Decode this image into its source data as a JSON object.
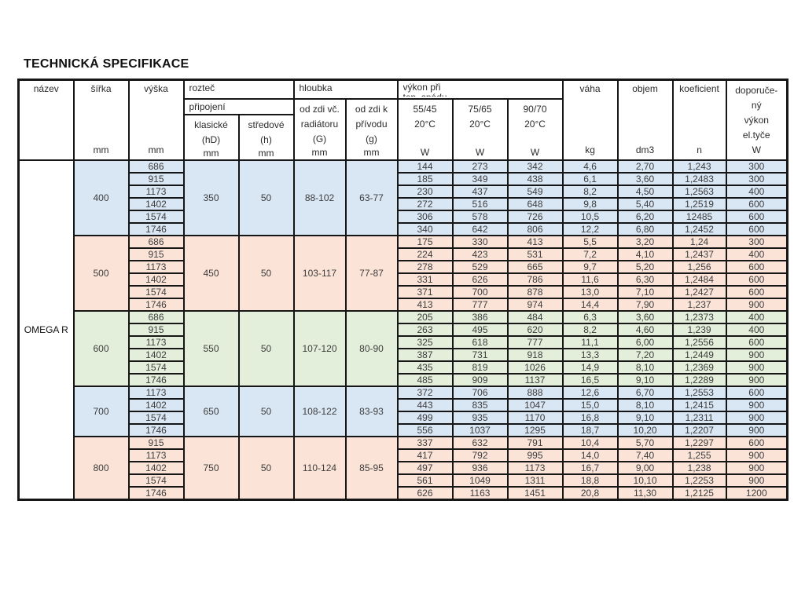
{
  "title": "TECHNICKÁ SPECIFIKACE",
  "colors": {
    "blue": "#d9e6f4",
    "peach": "#fbe4d7",
    "green": "#e3efdb"
  },
  "table": {
    "product": "OMEGA R",
    "headers": {
      "nazev": "název",
      "sirka": "šířka",
      "vyska": "výška",
      "roztec": "rozteč",
      "pripojeni": "připojení",
      "klasicke_l1": "klasické",
      "klasicke_l2": "(hD)",
      "stredove_l1": "středové",
      "stredove_l2": "(h)",
      "hloubka": "hloubka",
      "od_zdi_vc_l1": "od zdi  vč.",
      "od_zdi_vc_l2": "radiátoru",
      "od_zdi_vc_l3": "(G)",
      "od_zdi_k_l1": "od zdi  k",
      "od_zdi_k_l2": "přívodu",
      "od_zdi_k_l3": "(g)",
      "vykon_l1": "výkon při",
      "vykon_l2": "tep. spádu",
      "p55_l1": "55/45",
      "p55_l2": "20°C",
      "p75_l1": "75/65",
      "p75_l2": "20°C",
      "p90_l1": "90/70",
      "p90_l2": "20°C",
      "vaha": "váha",
      "objem": "objem",
      "koeficient": "koeficient",
      "dop_l1": "doporuče-",
      "dop_l2": "ný",
      "dop_l3": "výkon",
      "dop_l4": "el.tyče",
      "unit_mm": "mm",
      "unit_w": "W",
      "unit_kg": "kg",
      "unit_dm3": "dm3",
      "unit_n": "n"
    },
    "groups": [
      {
        "sirka": "400",
        "klasicke": "350",
        "stredove": "50",
        "hl_g": "88-102",
        "hl_g2": "63-77",
        "color": "blue",
        "rows": [
          {
            "vyska": "686",
            "w55": "144",
            "w75": "273",
            "w90": "342",
            "vaha": "4,6",
            "objem": "2,70",
            "koef": "1,243",
            "dop": "300"
          },
          {
            "vyska": "915",
            "w55": "185",
            "w75": "349",
            "w90": "438",
            "vaha": "6,1",
            "objem": "3,60",
            "koef": "1,2483",
            "dop": "300"
          },
          {
            "vyska": "1173",
            "w55": "230",
            "w75": "437",
            "w90": "549",
            "vaha": "8,2",
            "objem": "4,50",
            "koef": "1,2563",
            "dop": "400"
          },
          {
            "vyska": "1402",
            "w55": "272",
            "w75": "516",
            "w90": "648",
            "vaha": "9,8",
            "objem": "5,40",
            "koef": "1,2519",
            "dop": "600"
          },
          {
            "vyska": "1574",
            "w55": "306",
            "w75": "578",
            "w90": "726",
            "vaha": "10,5",
            "objem": "6,20",
            "koef": "12485",
            "dop": "600"
          },
          {
            "vyska": "1746",
            "w55": "340",
            "w75": "642",
            "w90": "806",
            "vaha": "12,2",
            "objem": "6,80",
            "koef": "1,2452",
            "dop": "600"
          }
        ]
      },
      {
        "sirka": "500",
        "klasicke": "450",
        "stredove": "50",
        "hl_g": "103-117",
        "hl_g2": "77-87",
        "color": "peach",
        "rows": [
          {
            "vyska": "686",
            "w55": "175",
            "w75": "330",
            "w90": "413",
            "vaha": "5,5",
            "objem": "3,20",
            "koef": "1,24",
            "dop": "300"
          },
          {
            "vyska": "915",
            "w55": "224",
            "w75": "423",
            "w90": "531",
            "vaha": "7,2",
            "objem": "4,10",
            "koef": "1,2437",
            "dop": "400"
          },
          {
            "vyska": "1173",
            "w55": "278",
            "w75": "529",
            "w90": "665",
            "vaha": "9,7",
            "objem": "5,20",
            "koef": "1,256",
            "dop": "600"
          },
          {
            "vyska": "1402",
            "w55": "331",
            "w75": "626",
            "w90": "786",
            "vaha": "11,6",
            "objem": "6,30",
            "koef": "1,2484",
            "dop": "600"
          },
          {
            "vyska": "1574",
            "w55": "371",
            "w75": "700",
            "w90": "878",
            "vaha": "13,0",
            "objem": "7,10",
            "koef": "1,2427",
            "dop": "600"
          },
          {
            "vyska": "1746",
            "w55": "413",
            "w75": "777",
            "w90": "974",
            "vaha": "14,4",
            "objem": "7,90",
            "koef": "1,237",
            "dop": "900"
          }
        ]
      },
      {
        "sirka": "600",
        "klasicke": "550",
        "stredove": "50",
        "hl_g": "107-120",
        "hl_g2": "80-90",
        "color": "green",
        "rows": [
          {
            "vyska": "686",
            "w55": "205",
            "w75": "386",
            "w90": "484",
            "vaha": "6,3",
            "objem": "3,60",
            "koef": "1,2373",
            "dop": "400"
          },
          {
            "vyska": "915",
            "w55": "263",
            "w75": "495",
            "w90": "620",
            "vaha": "8,2",
            "objem": "4,60",
            "koef": "1,239",
            "dop": "400"
          },
          {
            "vyska": "1173",
            "w55": "325",
            "w75": "618",
            "w90": "777",
            "vaha": "11,1",
            "objem": "6,00",
            "koef": "1,2556",
            "dop": "600"
          },
          {
            "vyska": "1402",
            "w55": "387",
            "w75": "731",
            "w90": "918",
            "vaha": "13,3",
            "objem": "7,20",
            "koef": "1,2449",
            "dop": "900"
          },
          {
            "vyska": "1574",
            "w55": "435",
            "w75": "819",
            "w90": "1026",
            "vaha": "14,9",
            "objem": "8,10",
            "koef": "1,2369",
            "dop": "900"
          },
          {
            "vyska": "1746",
            "w55": "485",
            "w75": "909",
            "w90": "1137",
            "vaha": "16,5",
            "objem": "9,10",
            "koef": "1,2289",
            "dop": "900"
          }
        ]
      },
      {
        "sirka": "700",
        "klasicke": "650",
        "stredove": "50",
        "hl_g": "108-122",
        "hl_g2": "83-93",
        "color": "blue",
        "rows": [
          {
            "vyska": "1173",
            "w55": "372",
            "w75": "706",
            "w90": "888",
            "vaha": "12,6",
            "objem": "6,70",
            "koef": "1,2553",
            "dop": "600"
          },
          {
            "vyska": "1402",
            "w55": "443",
            "w75": "835",
            "w90": "1047",
            "vaha": "15,0",
            "objem": "8,10",
            "koef": "1,2415",
            "dop": "900"
          },
          {
            "vyska": "1574",
            "w55": "499",
            "w75": "935",
            "w90": "1170",
            "vaha": "16,8",
            "objem": "9,10",
            "koef": "1,2311",
            "dop": "900"
          },
          {
            "vyska": "1746",
            "w55": "556",
            "w75": "1037",
            "w90": "1295",
            "vaha": "18,7",
            "objem": "10,20",
            "koef": "1,2207",
            "dop": "900"
          }
        ]
      },
      {
        "sirka": "800",
        "klasicke": "750",
        "stredove": "50",
        "hl_g": "110-124",
        "hl_g2": "85-95",
        "color": "peach",
        "rows": [
          {
            "vyska": "915",
            "w55": "337",
            "w75": "632",
            "w90": "791",
            "vaha": "10,4",
            "objem": "5,70",
            "koef": "1,2297",
            "dop": "600"
          },
          {
            "vyska": "1173",
            "w55": "417",
            "w75": "792",
            "w90": "995",
            "vaha": "14,0",
            "objem": "7,40",
            "koef": "1,255",
            "dop": "900"
          },
          {
            "vyska": "1402",
            "w55": "497",
            "w75": "936",
            "w90": "1173",
            "vaha": "16,7",
            "objem": "9,00",
            "koef": "1,238",
            "dop": "900"
          },
          {
            "vyska": "1574",
            "w55": "561",
            "w75": "1049",
            "w90": "1311",
            "vaha": "18,8",
            "objem": "10,10",
            "koef": "1,2253",
            "dop": "900"
          },
          {
            "vyska": "1746",
            "w55": "626",
            "w75": "1163",
            "w90": "1451",
            "vaha": "20,8",
            "objem": "11,30",
            "koef": "1,2125",
            "dop": "1200"
          }
        ]
      }
    ]
  }
}
